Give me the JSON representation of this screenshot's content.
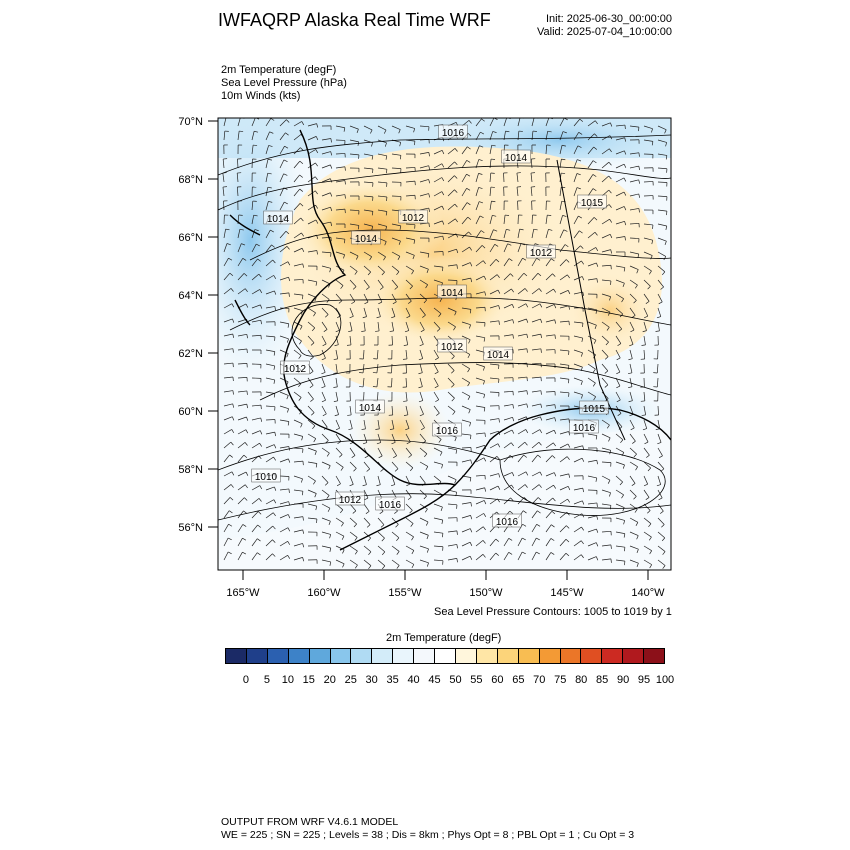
{
  "header": {
    "title": "IWFAQRP Alaska Real Time WRF",
    "init": "Init: 2025-06-30_00:00:00",
    "valid": "Valid: 2025-07-04_10:00:00"
  },
  "fields": [
    "2m Temperature   (degF)",
    "Sea Level Pressure   (hPa)",
    "10m Winds   (kts)"
  ],
  "axes": {
    "lat_labels": [
      "70°N",
      "68°N",
      "66°N",
      "64°N",
      "62°N",
      "60°N",
      "58°N",
      "56°N"
    ],
    "lon_labels": [
      "165°W",
      "160°W",
      "155°W",
      "150°W",
      "145°W",
      "140°W"
    ]
  },
  "pressure_labels": [
    "1016",
    "1014",
    "1015",
    "1014",
    "1012",
    "1014",
    "1012",
    "1014",
    "1012",
    "1014",
    "1012",
    "1014",
    "1016",
    "1015",
    "1016",
    "1010",
    "1012",
    "1016",
    "1016"
  ],
  "contour_note": "Sea Level Pressure Contours: 1005 to 1019 by 1",
  "colorbar": {
    "title": "2m Temperature  (degF)",
    "labels": [
      "0",
      "5",
      "10",
      "15",
      "20",
      "25",
      "30",
      "35",
      "40",
      "45",
      "50",
      "55",
      "60",
      "65",
      "70",
      "75",
      "80",
      "85",
      "90",
      "95",
      "100"
    ],
    "colors": [
      "#1b2a66",
      "#1f3f8a",
      "#2b60b0",
      "#3d82c8",
      "#5fa8dc",
      "#89c6ec",
      "#b0dbf3",
      "#d3ecf9",
      "#e9f5fc",
      "#f4f8fc",
      "#ffffff",
      "#fff6dc",
      "#ffe6a6",
      "#fcd47a",
      "#f8bd52",
      "#f39a35",
      "#eb7628",
      "#e04f22",
      "#cc2a22",
      "#b0191e",
      "#8c1019"
    ]
  },
  "footer": {
    "line1": "OUTPUT FROM WRF V4.6.1 MODEL",
    "line2": "WE = 225 ; SN = 225 ; Levels = 38 ; Dis = 8km ; Phys Opt = 8 ; PBL Opt = 1 ; Cu Opt = 3"
  }
}
